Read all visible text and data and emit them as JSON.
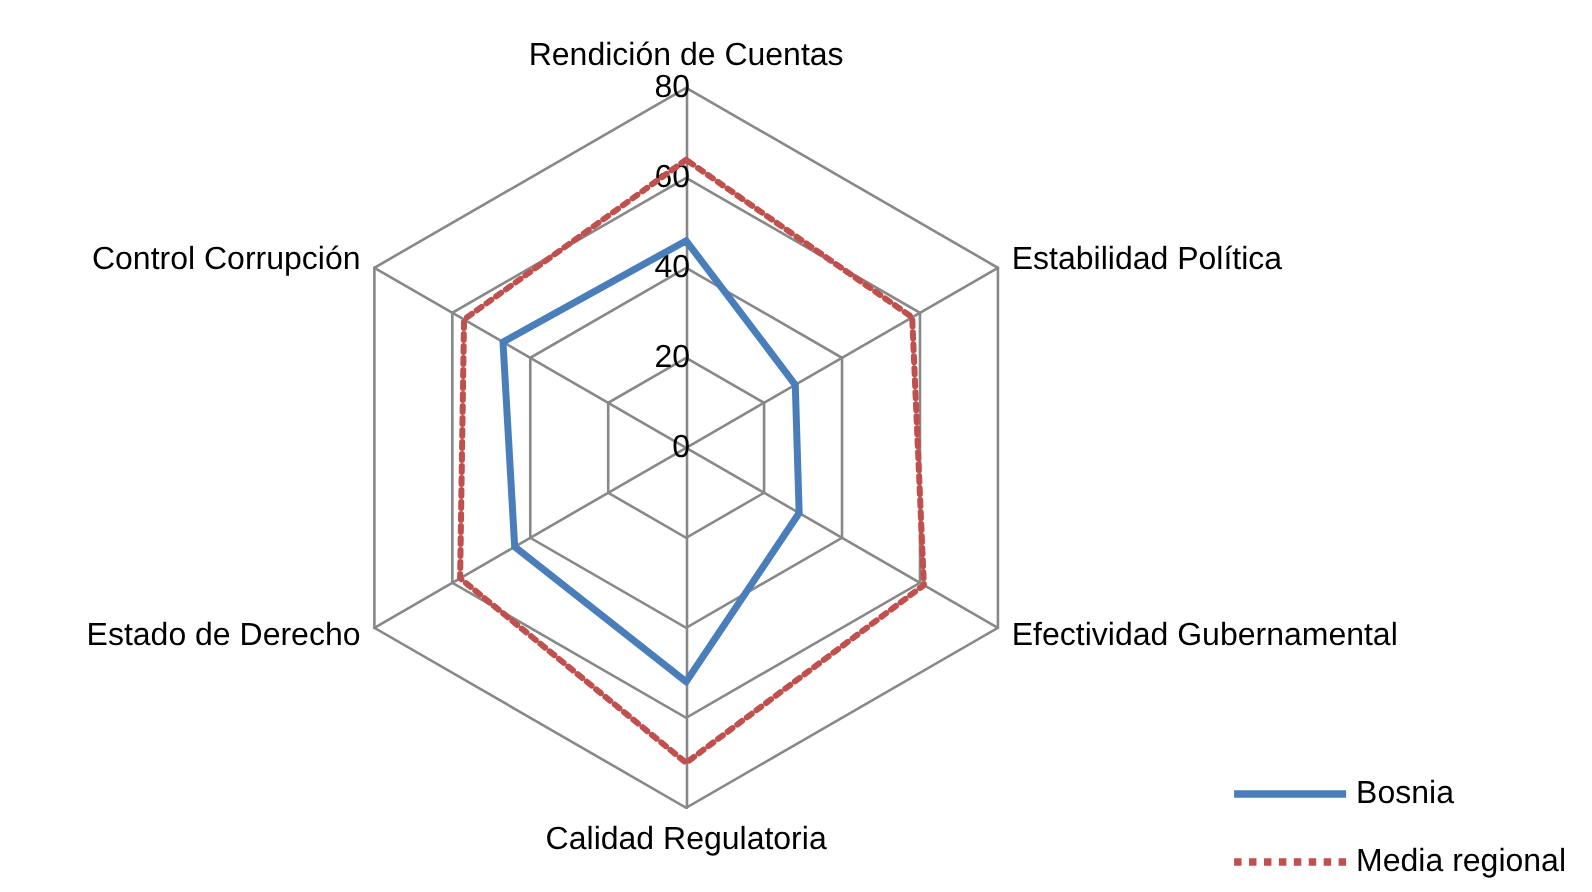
{
  "chart_data": {
    "type": "radar",
    "categories": [
      "Rendición de Cuentas",
      "Estabilidad Política",
      "Efectividad Gubernamental",
      "Calidad Regulatoria",
      "Estado de Derecho",
      "Control Corrupción"
    ],
    "series": [
      {
        "name": "Bosnia",
        "color": "#4a7ebb",
        "line_style": "solid",
        "values": [
          46,
          28,
          29,
          52,
          44,
          47
        ]
      },
      {
        "name": "Media regional",
        "color": "#c0504d",
        "line_style": "dotted",
        "values": [
          64,
          58,
          61,
          70,
          58,
          57
        ]
      }
    ],
    "ylim": [
      0,
      80
    ],
    "yticks": [
      0,
      20,
      40,
      60,
      80
    ],
    "grid": true,
    "legend": "bottom right",
    "marker": "none"
  }
}
